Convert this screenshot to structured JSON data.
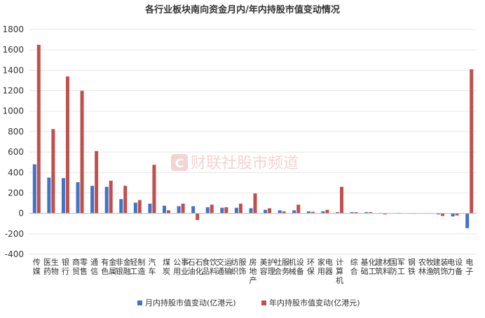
{
  "chart_data": {
    "type": "bar",
    "title": "各行业板块南向资金月内/年内持股市值变动情况",
    "categories": [
      "传媒",
      "医药生物",
      "银行",
      "商贸零售",
      "通信",
      "有色金属",
      "非银金融",
      "轻工制造",
      "汽车",
      "煤炭",
      "公用事业",
      "石油石化",
      "食品饮料",
      "交通运输",
      "纺织服饰",
      "房地产",
      "美容护理",
      "社会服务",
      "机械设备",
      "环保",
      "家用电器",
      "计算机",
      "综合",
      "基础化工",
      "建筑材料",
      "国防军工",
      "钢铁",
      "农林牧渔",
      "建筑装饰",
      "电力设备",
      "电子"
    ],
    "series": [
      {
        "name": "月内持股市值变动(亿港元)",
        "color": "#4472c4",
        "values": [
          480,
          350,
          345,
          305,
          270,
          260,
          140,
          105,
          95,
          75,
          70,
          70,
          60,
          55,
          55,
          50,
          35,
          30,
          30,
          20,
          20,
          12,
          12,
          12,
          5,
          3,
          3,
          3,
          -10,
          -30,
          -145
        ]
      },
      {
        "name": "年内持股市值变动(亿港元)",
        "color": "#c0504d",
        "values": [
          1650,
          825,
          1340,
          1200,
          610,
          320,
          270,
          130,
          475,
          30,
          95,
          -65,
          85,
          60,
          95,
          195,
          50,
          20,
          85,
          15,
          35,
          260,
          12,
          12,
          -10,
          5,
          2,
          3,
          -25,
          -20,
          1410
        ]
      }
    ],
    "ylim": [
      -400,
      1800
    ],
    "yticks": [
      -400,
      -200,
      0,
      200,
      400,
      600,
      800,
      1000,
      1200,
      1400,
      1600,
      1800
    ],
    "legend_position": "bottom",
    "watermark": "财联社股市频道"
  }
}
